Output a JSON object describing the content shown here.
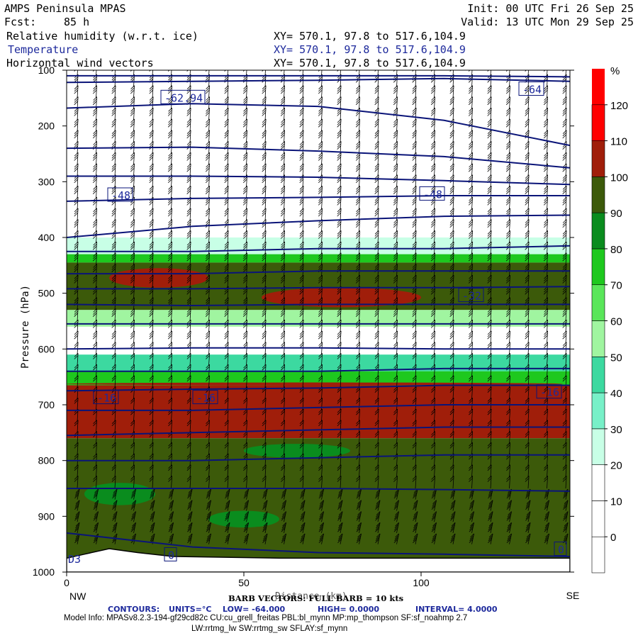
{
  "header": {
    "model": "AMPS Peninsula MPAS",
    "forecast_label": "Fcst:",
    "forecast_hours": "85 h",
    "init": "Init: 00 UTC Fri 26 Sep 25",
    "valid": "Valid: 13 UTC Mon 29 Sep 25",
    "fields": [
      {
        "name": "Relative humidity (w.r.t. ice)",
        "xy": "XY= 570.1, 97.8 to 517.6,104.9"
      },
      {
        "name": "Temperature",
        "xy": "XY= 570.1, 97.8 to 517.6,104.9"
      },
      {
        "name": "Horizontal wind vectors",
        "xy": "XY= 570.1, 97.8 to 517.6,104.9"
      }
    ]
  },
  "chart_data": {
    "type": "heatmap",
    "ylabel": "Pressure (hPa)",
    "xlabel": "Distance (km)",
    "x_range": [
      0,
      142
    ],
    "y_range": [
      100,
      1000
    ],
    "y_ticks": [
      100,
      200,
      300,
      400,
      500,
      600,
      700,
      800,
      900,
      1000
    ],
    "x_ticks": [
      0,
      50,
      100
    ],
    "x_end_labels": {
      "left": "NW",
      "right": "SE"
    },
    "colorbar": {
      "unit": "%",
      "levels": [
        0,
        10,
        20,
        30,
        40,
        50,
        60,
        70,
        80,
        90,
        100,
        110,
        120
      ],
      "label_levels": [
        0,
        10,
        20,
        30,
        40,
        50,
        60,
        70,
        80,
        90,
        100,
        110,
        120
      ],
      "colors": [
        "#ffffff",
        "#ffffff",
        "#ffffff",
        "#c8ffe6",
        "#78f0c8",
        "#3cd9a0",
        "#a0f5a0",
        "#5ae65a",
        "#1ec81e",
        "#0a8c1e",
        "#3c5a0a",
        "#a01e0a",
        "#ff0000"
      ]
    },
    "rh_bands": [
      {
        "p_top": 100,
        "p_bottom": 400,
        "rh": 5
      },
      {
        "p_top": 400,
        "p_bottom": 430,
        "rh": 35
      },
      {
        "p_top": 430,
        "p_bottom": 445,
        "rh": 85
      },
      {
        "p_top": 445,
        "p_bottom": 530,
        "rh": 105
      },
      {
        "p_top": 530,
        "p_bottom": 560,
        "rh": 65
      },
      {
        "p_top": 560,
        "p_bottom": 610,
        "rh": 15
      },
      {
        "p_top": 610,
        "p_bottom": 640,
        "rh": 55
      },
      {
        "p_top": 640,
        "p_bottom": 665,
        "rh": 85
      },
      {
        "p_top": 665,
        "p_bottom": 760,
        "rh": 112
      },
      {
        "p_top": 760,
        "p_bottom": 975,
        "rh": 103
      }
    ],
    "rh_patches": [
      {
        "x": [
          12,
          40
        ],
        "p": [
          455,
          490
        ],
        "rh": 112
      },
      {
        "x": [
          55,
          100
        ],
        "p": [
          490,
          525
        ],
        "rh": 112
      },
      {
        "x": [
          0,
          140
        ],
        "p": [
          660,
          665
        ],
        "rh": 112
      },
      {
        "x": [
          50,
          80
        ],
        "p": [
          770,
          795
        ],
        "rh": 95
      },
      {
        "x": [
          5,
          25
        ],
        "p": [
          840,
          880
        ],
        "rh": 95
      },
      {
        "x": [
          40,
          60
        ],
        "p": [
          890,
          920
        ],
        "rh": 95
      }
    ],
    "temperature_contours": {
      "units": "°C",
      "low": "-64.000",
      "high": "0.0000",
      "interval": "4.0000",
      "lines": [
        {
          "p": [
            110,
            110,
            110,
            110,
            112
          ]
        },
        {
          "p": [
            122,
            120,
            118,
            115,
            120
          ]
        },
        {
          "p": [
            168,
            160,
            165,
            190,
            235
          ]
        },
        {
          "p": [
            240,
            238,
            245,
            255,
            275
          ]
        },
        {
          "p": [
            290,
            290,
            292,
            298,
            305
          ]
        },
        {
          "p": [
            335,
            330,
            328,
            325,
            325
          ]
        },
        {
          "p": [
            400,
            380,
            370,
            362,
            360
          ]
        },
        {
          "p": [
            425,
            425,
            420,
            420,
            415
          ]
        },
        {
          "p": [
            465,
            465,
            460,
            460,
            460
          ]
        },
        {
          "p": [
            492,
            492,
            490,
            490,
            488
          ]
        },
        {
          "p": [
            520,
            522,
            520,
            520,
            520
          ]
        },
        {
          "p": [
            555,
            555,
            555,
            555,
            555
          ]
        },
        {
          "p": [
            600,
            598,
            598,
            600,
            600
          ]
        },
        {
          "p": [
            640,
            640,
            640,
            635,
            635
          ]
        },
        {
          "p": [
            675,
            672,
            670,
            665,
            665
          ]
        },
        {
          "p": [
            710,
            710,
            705,
            700,
            700
          ]
        },
        {
          "p": [
            755,
            750,
            745,
            740,
            740
          ]
        },
        {
          "p": [
            800,
            800,
            795,
            790,
            790
          ]
        },
        {
          "p": [
            850,
            850,
            850,
            852,
            855
          ]
        },
        {
          "p": [
            930,
            955,
            965,
            968,
            972
          ]
        }
      ],
      "labels": [
        {
          "text": "-62.94",
          "x": 27,
          "p": 150
        },
        {
          "text": "-64",
          "x": 128,
          "p": 135
        },
        {
          "text": "-48",
          "x": 12,
          "p": 325
        },
        {
          "text": "-48",
          "x": 100,
          "p": 323
        },
        {
          "text": "-32",
          "x": 111,
          "p": 505
        },
        {
          "text": "-16",
          "x": 8,
          "p": 688
        },
        {
          "text": "-16",
          "x": 36,
          "p": 688
        },
        {
          "text": "-16",
          "x": 133,
          "p": 678
        },
        {
          "text": "0",
          "x": 28,
          "p": 970
        },
        {
          "text": "0",
          "x": 138,
          "p": 960
        }
      ]
    },
    "terrain": {
      "x": [
        0,
        5,
        12,
        20,
        30,
        40,
        60,
        100,
        142
      ],
      "p": [
        975,
        968,
        958,
        965,
        972,
        973,
        975,
        975,
        975
      ]
    },
    "corner_label": "D3",
    "barb_note": "BARB VECTORS: FULL BARB = 10 kts",
    "contour_labels": {
      "title": "CONTOURS:",
      "units": "UNITS=°C",
      "low": "LOW= -64.000",
      "high": "HIGH= 0.0000",
      "interval": "INTERVAL= 4.0000"
    }
  },
  "footer": {
    "model_info": "Model Info: MPASv8.2.3-194-gf29cd82c CU:cu_grell_freitas PBL:bl_mynn MP:mp_thompson SF:sf_noahmp 2.7",
    "model_info2": "LW:rrtmg_lw SW:rrtmg_sw SFLAY:sf_mynn"
  }
}
